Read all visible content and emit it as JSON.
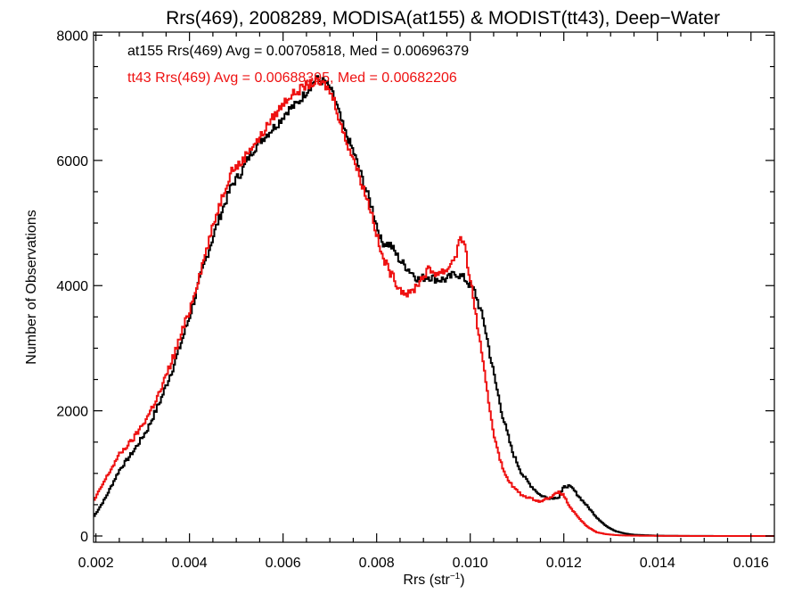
{
  "chart_data": {
    "type": "line",
    "title": "Rrs(469), 2008289, MODISA(at155) & MODIST(tt43), Deep−Water",
    "xlabel": "Rrs (str",
    "xlabel_sup": "−1",
    "xlabel_close": ")",
    "ylabel": "Number of Observations",
    "xlim": [
      0.00195,
      0.0165
    ],
    "ylim": [
      -100,
      8050
    ],
    "x_ticks": [
      0.002,
      0.004,
      0.006,
      0.008,
      0.01,
      0.012,
      0.014,
      0.016
    ],
    "x_tick_labels": [
      "0.002",
      "0.004",
      "0.006",
      "0.008",
      "0.010",
      "0.012",
      "0.014",
      "0.016"
    ],
    "y_ticks": [
      0,
      2000,
      4000,
      6000,
      8000
    ],
    "y_tick_labels": [
      "0",
      "2000",
      "4000",
      "6000",
      "8000"
    ],
    "grid": false,
    "step": "histogram",
    "annotations": [
      {
        "text": "at155 Rrs(469) Avg = 0.00705818, Med = 0.00696379",
        "color": "#000000"
      },
      {
        "text": "tt43 Rrs(469) Avg = 0.00688395, Med = 0.00682206",
        "color": "#ee1111"
      }
    ],
    "series": [
      {
        "color": "#000000",
        "x": [
          0.00195,
          0.0022,
          0.0025,
          0.0028,
          0.0031,
          0.0034,
          0.0037,
          0.004,
          0.0043,
          0.0046,
          0.0049,
          0.0051,
          0.0053,
          0.0055,
          0.0057,
          0.0059,
          0.0061,
          0.0063,
          0.0065,
          0.0067,
          0.0069,
          0.007,
          0.0071,
          0.0073,
          0.0075,
          0.0077,
          0.0079,
          0.0081,
          0.0083,
          0.0085,
          0.0087,
          0.0089,
          0.0091,
          0.0093,
          0.0095,
          0.0097,
          0.0099,
          0.0101,
          0.0103,
          0.0105,
          0.0107,
          0.0109,
          0.0111,
          0.0113,
          0.0115,
          0.0117,
          0.0119,
          0.012,
          0.0121,
          0.0122,
          0.0123,
          0.0125,
          0.0127,
          0.0129,
          0.0131,
          0.0133,
          0.0135,
          0.014,
          0.0145,
          0.015,
          0.0155,
          0.016,
          0.0165
        ],
        "y": [
          300,
          600,
          1050,
          1350,
          1700,
          2200,
          2800,
          3500,
          4300,
          5000,
          5600,
          5800,
          6100,
          6300,
          6450,
          6600,
          6800,
          6900,
          7100,
          7300,
          7250,
          7150,
          7000,
          6500,
          6150,
          5700,
          5250,
          4700,
          4650,
          4400,
          4250,
          4100,
          4150,
          4100,
          4100,
          4200,
          4100,
          3900,
          3400,
          2600,
          1900,
          1350,
          1000,
          800,
          650,
          600,
          620,
          780,
          800,
          750,
          650,
          480,
          300,
          160,
          80,
          40,
          20,
          5,
          2,
          1,
          0,
          0,
          0
        ]
      },
      {
        "color": "#ee1111",
        "x": [
          0.00195,
          0.0022,
          0.0025,
          0.0028,
          0.0031,
          0.0034,
          0.0037,
          0.004,
          0.0043,
          0.0046,
          0.0049,
          0.0051,
          0.0053,
          0.0055,
          0.0057,
          0.0059,
          0.0061,
          0.0063,
          0.0065,
          0.0067,
          0.0069,
          0.007,
          0.0071,
          0.0073,
          0.0075,
          0.0077,
          0.0079,
          0.0081,
          0.0083,
          0.0085,
          0.0087,
          0.0089,
          0.0091,
          0.0093,
          0.0095,
          0.0097,
          0.0098,
          0.0099,
          0.0101,
          0.0103,
          0.0105,
          0.0107,
          0.0109,
          0.0111,
          0.0113,
          0.0115,
          0.0117,
          0.0119,
          0.012,
          0.0121,
          0.0123,
          0.0125,
          0.0127,
          0.0129,
          0.0131,
          0.0133,
          0.0135,
          0.014,
          0.0145,
          0.015,
          0.0155,
          0.016,
          0.0165
        ],
        "y": [
          550,
          900,
          1300,
          1550,
          1900,
          2350,
          2950,
          3600,
          4400,
          5200,
          5850,
          5950,
          6200,
          6350,
          6600,
          6800,
          7000,
          7100,
          7200,
          7250,
          7200,
          7100,
          6950,
          6400,
          6050,
          5600,
          5150,
          4500,
          4200,
          3950,
          3850,
          4050,
          4250,
          4200,
          4250,
          4500,
          4800,
          4550,
          3650,
          2600,
          1650,
          1050,
          800,
          650,
          600,
          550,
          620,
          700,
          650,
          500,
          300,
          150,
          60,
          30,
          15,
          8,
          5,
          2,
          1,
          0,
          0,
          0,
          0
        ]
      }
    ]
  }
}
